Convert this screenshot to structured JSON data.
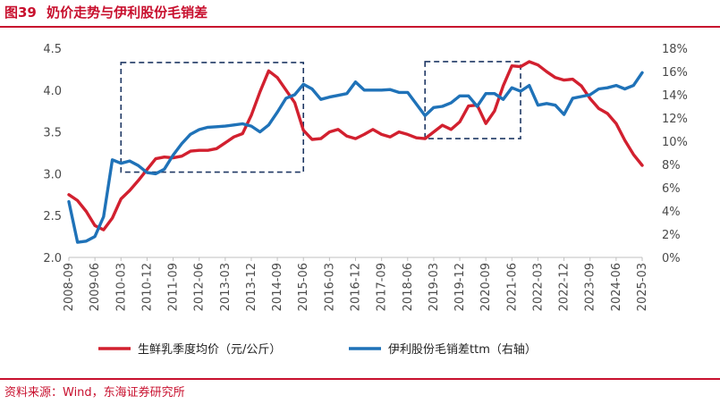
{
  "header": {
    "figure_label": "图39",
    "title": "奶价走势与伊利股份毛销差"
  },
  "footer": {
    "source": "资料来源：Wind，东海证券研究所"
  },
  "colors": {
    "accent": "#c8102e",
    "milk_line": "#d2202f",
    "margin_line": "#1f72b8",
    "box": "#1f3864"
  },
  "chart_data": {
    "type": "line",
    "title": "奶价走势与伊利股份毛销差",
    "categories": [
      "2008-09",
      "2009-06",
      "2010-03",
      "2010-12",
      "2011-09",
      "2012-06",
      "2013-03",
      "2013-12",
      "2014-09",
      "2015-06",
      "2016-03",
      "2016-12",
      "2017-09",
      "2018-06",
      "2019-03",
      "2019-12",
      "2020-09",
      "2021-06",
      "2022-03",
      "2022-12",
      "2023-09",
      "2024-06",
      "2025-03"
    ],
    "x_range": [
      2008.67,
      2025.17
    ],
    "y_left": {
      "range": [
        2.0,
        4.5
      ],
      "ticks": [
        "2.0",
        "2.5",
        "3.0",
        "3.5",
        "4.0",
        "4.5"
      ],
      "tick_values": [
        2.0,
        2.5,
        3.0,
        3.5,
        4.0,
        4.5
      ]
    },
    "y_right": {
      "range": [
        0,
        18
      ],
      "ticks": [
        "0%",
        "2%",
        "4%",
        "6%",
        "8%",
        "10%",
        "12%",
        "14%",
        "16%",
        "18%"
      ],
      "tick_values": [
        0,
        2,
        4,
        6,
        8,
        10,
        12,
        14,
        16,
        18
      ]
    },
    "series": [
      {
        "name": "生鲜乳季度均价（元/公斤）",
        "axis": "left",
        "color": "#d2202f",
        "points": [
          [
            2008.67,
            2.75
          ],
          [
            2008.92,
            2.68
          ],
          [
            2009.17,
            2.55
          ],
          [
            2009.42,
            2.38
          ],
          [
            2009.67,
            2.33
          ],
          [
            2009.92,
            2.47
          ],
          [
            2010.17,
            2.7
          ],
          [
            2010.42,
            2.8
          ],
          [
            2010.67,
            2.92
          ],
          [
            2010.92,
            3.05
          ],
          [
            2011.17,
            3.18
          ],
          [
            2011.42,
            3.2
          ],
          [
            2011.67,
            3.19
          ],
          [
            2011.92,
            3.21
          ],
          [
            2012.17,
            3.27
          ],
          [
            2012.42,
            3.28
          ],
          [
            2012.67,
            3.28
          ],
          [
            2012.92,
            3.3
          ],
          [
            2013.17,
            3.37
          ],
          [
            2013.42,
            3.44
          ],
          [
            2013.67,
            3.48
          ],
          [
            2013.92,
            3.7
          ],
          [
            2014.17,
            3.98
          ],
          [
            2014.42,
            4.23
          ],
          [
            2014.67,
            4.15
          ],
          [
            2014.92,
            4.0
          ],
          [
            2015.17,
            3.85
          ],
          [
            2015.42,
            3.52
          ],
          [
            2015.67,
            3.41
          ],
          [
            2015.92,
            3.42
          ],
          [
            2016.17,
            3.5
          ],
          [
            2016.42,
            3.53
          ],
          [
            2016.67,
            3.45
          ],
          [
            2016.92,
            3.42
          ],
          [
            2017.17,
            3.47
          ],
          [
            2017.42,
            3.53
          ],
          [
            2017.67,
            3.47
          ],
          [
            2017.92,
            3.44
          ],
          [
            2018.17,
            3.5
          ],
          [
            2018.42,
            3.47
          ],
          [
            2018.67,
            3.43
          ],
          [
            2018.92,
            3.42
          ],
          [
            2019.17,
            3.5
          ],
          [
            2019.42,
            3.58
          ],
          [
            2019.67,
            3.53
          ],
          [
            2019.92,
            3.62
          ],
          [
            2020.17,
            3.81
          ],
          [
            2020.42,
            3.82
          ],
          [
            2020.67,
            3.6
          ],
          [
            2020.92,
            3.75
          ],
          [
            2021.17,
            4.05
          ],
          [
            2021.42,
            4.29
          ],
          [
            2021.67,
            4.28
          ],
          [
            2021.92,
            4.34
          ],
          [
            2022.17,
            4.3
          ],
          [
            2022.42,
            4.22
          ],
          [
            2022.67,
            4.15
          ],
          [
            2022.92,
            4.12
          ],
          [
            2023.17,
            4.13
          ],
          [
            2023.42,
            4.05
          ],
          [
            2023.67,
            3.9
          ],
          [
            2023.92,
            3.78
          ],
          [
            2024.17,
            3.72
          ],
          [
            2024.42,
            3.6
          ],
          [
            2024.67,
            3.4
          ],
          [
            2024.92,
            3.23
          ],
          [
            2025.17,
            3.1
          ]
        ]
      },
      {
        "name": "伊利股份毛销差ttm（右轴）",
        "axis": "right",
        "color": "#1f72b8",
        "points": [
          [
            2008.67,
            4.8
          ],
          [
            2008.92,
            1.3
          ],
          [
            2009.17,
            1.4
          ],
          [
            2009.42,
            1.8
          ],
          [
            2009.67,
            3.5
          ],
          [
            2009.92,
            8.4
          ],
          [
            2010.17,
            8.1
          ],
          [
            2010.42,
            8.3
          ],
          [
            2010.67,
            7.9
          ],
          [
            2010.92,
            7.3
          ],
          [
            2011.17,
            7.2
          ],
          [
            2011.42,
            7.6
          ],
          [
            2011.67,
            8.8
          ],
          [
            2011.92,
            9.8
          ],
          [
            2012.17,
            10.6
          ],
          [
            2012.42,
            11.0
          ],
          [
            2012.67,
            11.2
          ],
          [
            2012.92,
            11.25
          ],
          [
            2013.17,
            11.3
          ],
          [
            2013.42,
            11.4
          ],
          [
            2013.67,
            11.5
          ],
          [
            2013.92,
            11.3
          ],
          [
            2014.17,
            10.8
          ],
          [
            2014.42,
            11.4
          ],
          [
            2014.67,
            12.5
          ],
          [
            2014.92,
            13.7
          ],
          [
            2015.17,
            14.0
          ],
          [
            2015.42,
            14.9
          ],
          [
            2015.67,
            14.5
          ],
          [
            2015.92,
            13.6
          ],
          [
            2016.17,
            13.8
          ],
          [
            2016.42,
            13.95
          ],
          [
            2016.67,
            14.1
          ],
          [
            2016.92,
            15.1
          ],
          [
            2017.17,
            14.4
          ],
          [
            2017.42,
            14.4
          ],
          [
            2017.67,
            14.4
          ],
          [
            2017.92,
            14.45
          ],
          [
            2018.17,
            14.2
          ],
          [
            2018.42,
            14.2
          ],
          [
            2018.67,
            13.2
          ],
          [
            2018.92,
            12.2
          ],
          [
            2019.17,
            12.9
          ],
          [
            2019.42,
            13.0
          ],
          [
            2019.67,
            13.3
          ],
          [
            2019.92,
            13.9
          ],
          [
            2020.17,
            13.9
          ],
          [
            2020.42,
            13.0
          ],
          [
            2020.67,
            14.1
          ],
          [
            2020.92,
            14.1
          ],
          [
            2021.17,
            13.6
          ],
          [
            2021.42,
            14.6
          ],
          [
            2021.67,
            14.3
          ],
          [
            2021.92,
            14.8
          ],
          [
            2022.17,
            13.1
          ],
          [
            2022.42,
            13.25
          ],
          [
            2022.67,
            13.1
          ],
          [
            2022.92,
            12.3
          ],
          [
            2023.17,
            13.7
          ],
          [
            2023.42,
            13.85
          ],
          [
            2023.67,
            14.0
          ],
          [
            2023.92,
            14.5
          ],
          [
            2024.17,
            14.6
          ],
          [
            2024.42,
            14.8
          ],
          [
            2024.67,
            14.5
          ],
          [
            2024.92,
            14.8
          ],
          [
            2025.17,
            15.9
          ]
        ]
      }
    ],
    "annotations": [
      {
        "type": "dashed-box",
        "x": [
          2010.17,
          2015.42
        ],
        "y_left": [
          3.02,
          4.33
        ]
      },
      {
        "type": "dashed-box",
        "x": [
          2018.92,
          2021.67
        ],
        "y_left": [
          3.42,
          4.34
        ]
      }
    ],
    "legend_placement": "bottom"
  }
}
